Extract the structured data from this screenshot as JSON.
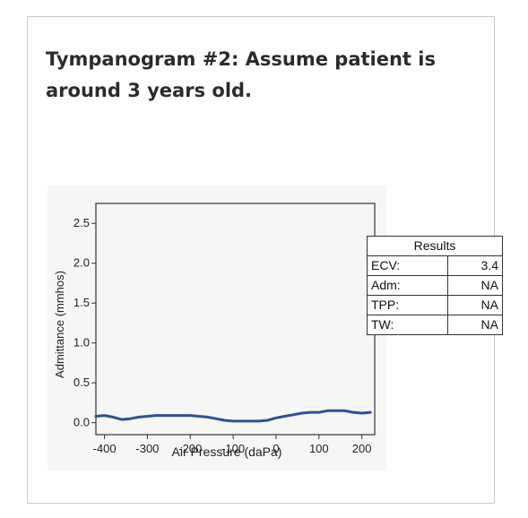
{
  "card": {
    "title": "Tympanogram #2: Assume patient is around 3 years old."
  },
  "results_table": {
    "header": "Results",
    "rows": [
      {
        "label": "ECV:",
        "value": "3.4"
      },
      {
        "label": "Adm:",
        "value": "NA"
      },
      {
        "label": "TPP:",
        "value": "NA"
      },
      {
        "label": "TW:",
        "value": "NA"
      }
    ]
  },
  "chart_data": {
    "type": "line",
    "xlabel": "Air Pressure (daPa)",
    "ylabel": "Admittance (mmhos)",
    "xlim": [
      -420,
      230
    ],
    "ylim": [
      -0.15,
      2.75
    ],
    "x_ticks": [
      -400,
      -300,
      -200,
      -100,
      0,
      100,
      200
    ],
    "x_tick_labels": [
      "-400",
      "-300",
      "-200",
      "-100",
      "0",
      "100",
      "200"
    ],
    "y_ticks": [
      0.0,
      0.5,
      1.0,
      1.5,
      2.0,
      2.5
    ],
    "y_tick_labels": [
      "0.0",
      "0.5",
      "1.0",
      "1.5",
      "2.0",
      "2.5"
    ],
    "grid": false,
    "color": "#2f4f9a",
    "series": [
      {
        "x": [
          -420,
          -400,
          -380,
          -360,
          -340,
          -320,
          -300,
          -280,
          -260,
          -240,
          -220,
          -200,
          -180,
          -160,
          -140,
          -120,
          -100,
          -80,
          -60,
          -40,
          -20,
          0,
          20,
          40,
          60,
          80,
          100,
          120,
          140,
          160,
          180,
          200,
          220
        ],
        "y": [
          0.08,
          0.09,
          0.07,
          0.04,
          0.05,
          0.07,
          0.08,
          0.09,
          0.09,
          0.09,
          0.09,
          0.09,
          0.08,
          0.07,
          0.05,
          0.03,
          0.02,
          0.02,
          0.02,
          0.02,
          0.03,
          0.06,
          0.08,
          0.1,
          0.12,
          0.13,
          0.13,
          0.15,
          0.15,
          0.15,
          0.13,
          0.12,
          0.13
        ]
      }
    ]
  }
}
